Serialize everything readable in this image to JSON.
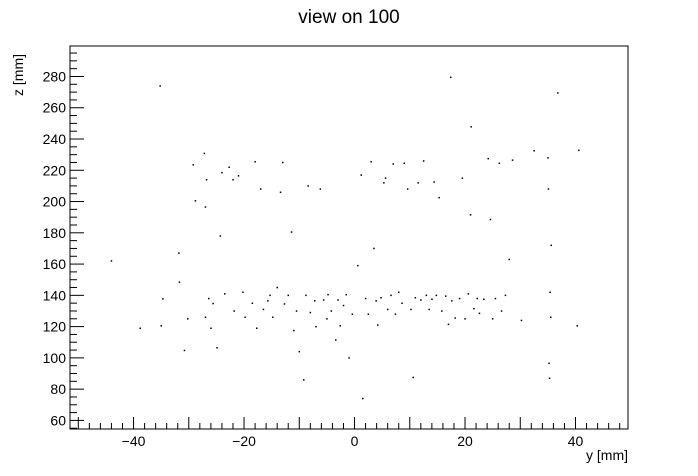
{
  "chart_data": {
    "type": "scatter",
    "title": "view on 100",
    "xlabel": "y [mm]",
    "ylabel": "z [mm]",
    "xlim": [
      -51.5,
      49.5
    ],
    "ylim": [
      54.5,
      299.5
    ],
    "xticks": [
      -40,
      -20,
      0,
      20,
      40
    ],
    "yticks": [
      60,
      80,
      100,
      120,
      140,
      160,
      180,
      200,
      220,
      240,
      260,
      280
    ],
    "grid": false,
    "marker_color": "#000000",
    "points": [
      [
        -35.2,
        274.0
      ],
      [
        36.8,
        269.5
      ],
      [
        17.4,
        279.5
      ],
      [
        40.6,
        232.8
      ],
      [
        21.1,
        247.8
      ],
      [
        -44.0,
        162.0
      ],
      [
        -38.8,
        119.0
      ],
      [
        -35.0,
        120.5
      ],
      [
        -34.7,
        137.8
      ],
      [
        -31.8,
        167.0
      ],
      [
        -31.7,
        148.5
      ],
      [
        -30.8,
        104.8
      ],
      [
        -30.2,
        125.0
      ],
      [
        -29.2,
        223.5
      ],
      [
        -28.8,
        200.5
      ],
      [
        -27.2,
        230.8
      ],
      [
        -27.0,
        196.5
      ],
      [
        -26.8,
        214.0
      ],
      [
        -27.0,
        126.0
      ],
      [
        -26.4,
        138.0
      ],
      [
        -26.0,
        119.0
      ],
      [
        -25.6,
        134.8
      ],
      [
        -24.9,
        106.5
      ],
      [
        -24.3,
        178.0
      ],
      [
        -24.0,
        218.5
      ],
      [
        -23.5,
        141.0
      ],
      [
        -22.7,
        222.0
      ],
      [
        -22.0,
        214.0
      ],
      [
        -21.8,
        130.0
      ],
      [
        -21.0,
        216.5
      ],
      [
        -20.2,
        142.0
      ],
      [
        -19.8,
        126.0
      ],
      [
        -18.5,
        135.0
      ],
      [
        -18.0,
        225.5
      ],
      [
        -17.7,
        119.0
      ],
      [
        -17.0,
        208.0
      ],
      [
        -16.5,
        131.0
      ],
      [
        -15.7,
        136.5
      ],
      [
        -15.3,
        140.0
      ],
      [
        -14.8,
        126.0
      ],
      [
        -14.0,
        145.0
      ],
      [
        -13.4,
        206.0
      ],
      [
        -13.0,
        225.0
      ],
      [
        -12.7,
        134.5
      ],
      [
        -12.0,
        140.0
      ],
      [
        -11.4,
        180.5
      ],
      [
        -11.0,
        117.5
      ],
      [
        -10.5,
        130.0
      ],
      [
        -10.0,
        104.0
      ],
      [
        -9.2,
        86.0
      ],
      [
        -8.8,
        140.0
      ],
      [
        -8.4,
        210.0
      ],
      [
        -8.0,
        129.0
      ],
      [
        -7.2,
        136.5
      ],
      [
        -7.0,
        120.0
      ],
      [
        -6.2,
        208.0
      ],
      [
        -5.6,
        137.0
      ],
      [
        -5.0,
        125.0
      ],
      [
        -4.8,
        140.5
      ],
      [
        -4.2,
        130.0
      ],
      [
        -3.4,
        111.5
      ],
      [
        -3.0,
        137.0
      ],
      [
        -2.6,
        120.5
      ],
      [
        -2.0,
        133.5
      ],
      [
        -1.5,
        140.5
      ],
      [
        -1.0,
        100.0
      ],
      [
        -0.4,
        128.0
      ],
      [
        0.6,
        159.0
      ],
      [
        1.2,
        217.0
      ],
      [
        1.5,
        74.0
      ],
      [
        2.0,
        138.0
      ],
      [
        2.5,
        128.0
      ],
      [
        3.0,
        225.5
      ],
      [
        3.5,
        170.0
      ],
      [
        3.9,
        136.5
      ],
      [
        4.2,
        121.0
      ],
      [
        4.8,
        138.5
      ],
      [
        5.3,
        212.0
      ],
      [
        5.6,
        215.0
      ],
      [
        6.0,
        131.0
      ],
      [
        6.6,
        140.0
      ],
      [
        7.0,
        224.0
      ],
      [
        7.4,
        128.0
      ],
      [
        8.0,
        142.0
      ],
      [
        8.6,
        135.0
      ],
      [
        9.0,
        224.5
      ],
      [
        9.6,
        208.0
      ],
      [
        10.2,
        131.0
      ],
      [
        10.6,
        87.5
      ],
      [
        11.0,
        138.5
      ],
      [
        11.5,
        212.0
      ],
      [
        12.0,
        137.0
      ],
      [
        12.5,
        226.0
      ],
      [
        13.0,
        140.0
      ],
      [
        13.5,
        131.0
      ],
      [
        14.0,
        137.5
      ],
      [
        14.4,
        212.5
      ],
      [
        14.8,
        140.0
      ],
      [
        15.3,
        202.5
      ],
      [
        15.8,
        130.0
      ],
      [
        16.5,
        139.5
      ],
      [
        17.0,
        121.5
      ],
      [
        17.6,
        136.5
      ],
      [
        18.2,
        125.5
      ],
      [
        19.0,
        138.0
      ],
      [
        19.5,
        215.0
      ],
      [
        20.0,
        125.0
      ],
      [
        20.6,
        141.0
      ],
      [
        21.0,
        191.5
      ],
      [
        21.6,
        131.5
      ],
      [
        22.2,
        138.0
      ],
      [
        22.6,
        128.5
      ],
      [
        23.4,
        137.5
      ],
      [
        24.2,
        227.5
      ],
      [
        24.6,
        188.5
      ],
      [
        25.0,
        125.0
      ],
      [
        25.5,
        138.0
      ],
      [
        26.2,
        224.5
      ],
      [
        26.6,
        130.0
      ],
      [
        27.3,
        140.0
      ],
      [
        28.0,
        163.0
      ],
      [
        28.6,
        226.5
      ],
      [
        30.2,
        124.0
      ],
      [
        32.5,
        232.5
      ],
      [
        35.0,
        228.0
      ],
      [
        35.1,
        208.0
      ],
      [
        35.2,
        96.5
      ],
      [
        35.3,
        87.0
      ],
      [
        35.4,
        142.0
      ],
      [
        35.5,
        126.0
      ],
      [
        35.6,
        172.0
      ],
      [
        40.3,
        120.5
      ]
    ]
  }
}
